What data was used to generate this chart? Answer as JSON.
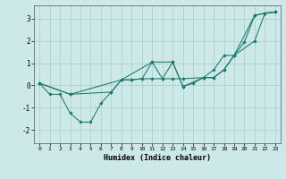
{
  "xlabel": "Humidex (Indice chaleur)",
  "xlim": [
    -0.5,
    23.5
  ],
  "ylim": [
    -2.6,
    3.6
  ],
  "yticks": [
    -2,
    -1,
    0,
    1,
    2,
    3
  ],
  "xticks": [
    0,
    1,
    2,
    3,
    4,
    5,
    6,
    7,
    8,
    9,
    10,
    11,
    12,
    13,
    14,
    15,
    16,
    17,
    18,
    19,
    20,
    21,
    22,
    23
  ],
  "bg_color": "#cce8e8",
  "grid_color": "#aacccc",
  "line_color": "#1a7a6a",
  "line1_x": [
    0,
    1,
    2,
    3,
    4,
    5,
    6,
    7,
    8,
    9,
    10,
    11,
    12,
    13,
    14,
    15,
    16,
    17,
    18,
    19,
    20,
    21,
    22,
    23
  ],
  "line1_y": [
    0.1,
    -0.4,
    -0.4,
    -1.25,
    -1.65,
    -1.65,
    -0.8,
    -0.3,
    0.25,
    0.25,
    0.3,
    1.05,
    0.3,
    1.05,
    -0.05,
    0.1,
    0.35,
    0.35,
    0.7,
    1.35,
    1.95,
    3.15,
    3.25,
    3.3
  ],
  "line2_x": [
    0,
    3,
    7,
    8,
    9,
    10,
    11,
    12,
    13,
    14,
    16,
    17,
    18,
    19,
    21,
    22,
    23
  ],
  "line2_y": [
    0.1,
    -0.4,
    -0.3,
    0.25,
    0.25,
    0.3,
    0.3,
    0.3,
    0.3,
    0.3,
    0.35,
    0.35,
    0.7,
    1.35,
    3.15,
    3.25,
    3.3
  ],
  "line3_x": [
    0,
    3,
    8,
    11,
    13,
    14,
    16,
    17,
    18,
    19,
    21,
    22,
    23
  ],
  "line3_y": [
    0.1,
    -0.4,
    0.25,
    1.05,
    1.05,
    -0.05,
    0.35,
    0.7,
    1.35,
    1.35,
    2.0,
    3.25,
    3.3
  ]
}
